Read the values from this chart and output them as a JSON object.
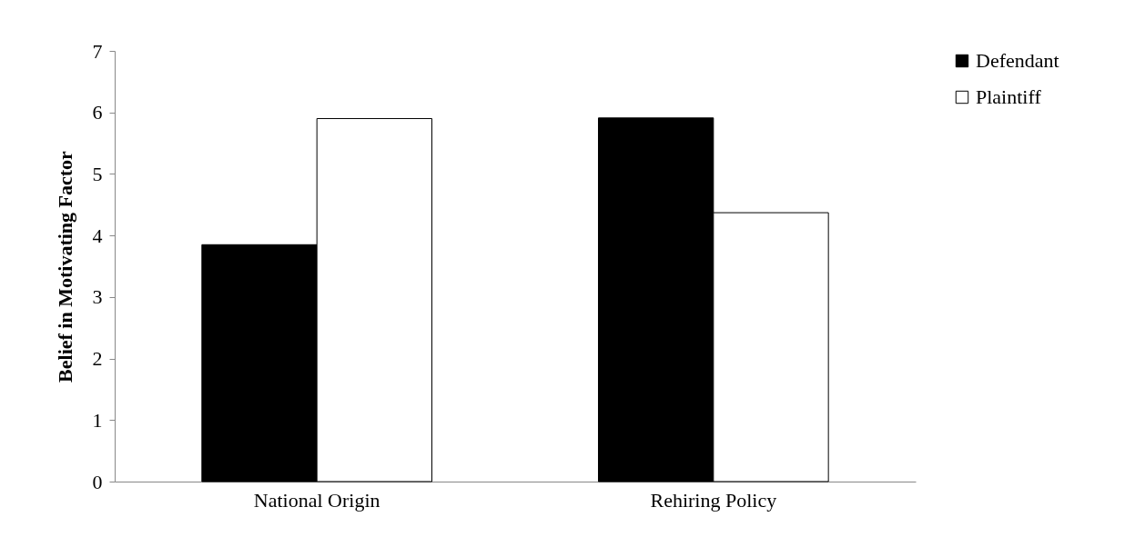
{
  "chart_data": {
    "type": "bar",
    "ylabel": "Belief in Motivating Factor",
    "categories": [
      "National Origin",
      "Rehiring Policy"
    ],
    "series": [
      {
        "name": "Defendant",
        "color": "#000000",
        "values": [
          3.85,
          5.91
        ]
      },
      {
        "name": "Plaintiff",
        "color": "#ffffff",
        "values": [
          5.9,
          4.37
        ]
      }
    ],
    "ylim": [
      0,
      7
    ],
    "yticks": [
      0,
      1,
      2,
      3,
      4,
      5,
      6,
      7
    ],
    "grid": false,
    "legend": "right"
  }
}
